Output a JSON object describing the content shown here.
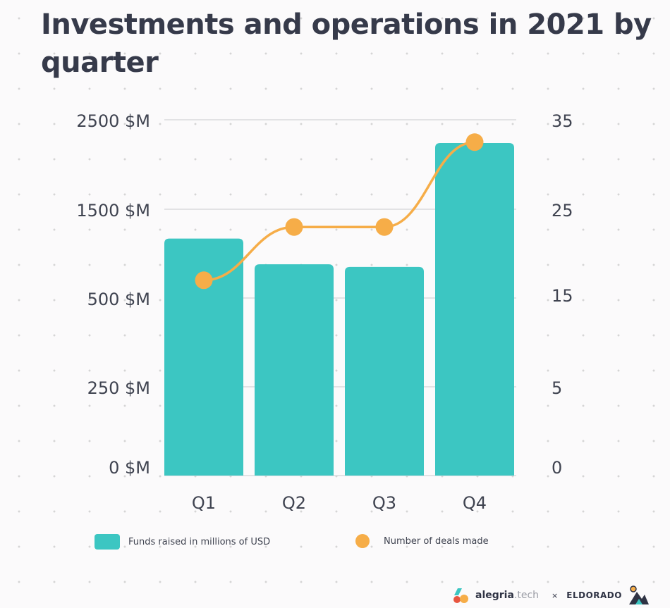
{
  "chart_data": {
    "type": "bar",
    "title": "Investments and operations in 2021 by quarter",
    "categories": [
      "Q1",
      "Q2",
      "Q3",
      "Q4"
    ],
    "left_axis": {
      "ticks": [
        "2500 $M",
        "1500 $M",
        "500 $M",
        "250 $M",
        "0 $M"
      ]
    },
    "right_axis": {
      "ticks": [
        "35",
        "25",
        "15",
        "5",
        "0"
      ]
    },
    "series": [
      {
        "name": "Funds raised in millions of USD",
        "type": "bar",
        "axis": "left",
        "values": [
          1170,
          880,
          850,
          2240
        ],
        "color": "#3cc6c2"
      },
      {
        "name": "Number of deals made",
        "type": "line",
        "axis": "right",
        "values": [
          17,
          23,
          23,
          32.5
        ],
        "color": "#f6ad48"
      }
    ],
    "grid": true,
    "legend_position": "bottom"
  },
  "footer": {
    "brand_primary": "alegria",
    "brand_primary_suffix": ".tech",
    "separator": "×",
    "brand_secondary": "ELDORADO"
  }
}
